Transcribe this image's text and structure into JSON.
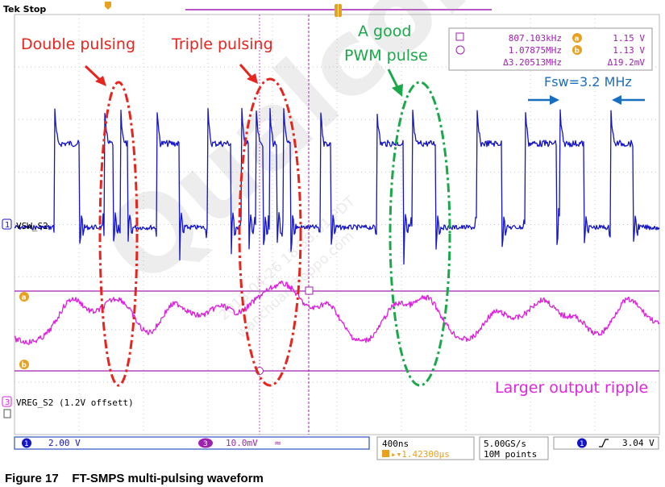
{
  "status": "Tek Stop",
  "colors": {
    "ch1": "#1414c8",
    "ch3": "#e01ee0",
    "cursor": "#a020b0",
    "annot_red": "#e8241e",
    "annot_green": "#1aa84a",
    "annot_blue": "#1a6ec0",
    "annot_magenta": "#e026e0",
    "trigger": "#e8a020"
  },
  "annotations": {
    "double": "Double pulsing",
    "triple": "Triple pulsing",
    "good_line1": "A good",
    "good_line2": "PWM pulse",
    "fsw": "Fsw=3.2 MHz",
    "ripple": "Larger output ripple"
  },
  "cursor_readout": {
    "f1": "807.103kHz",
    "f2": "1.07875MHz",
    "df": "Δ3.20513MHz",
    "a_val": "1.15 V",
    "b_val": "1.13 V",
    "dv": "Δ19.2mV",
    "a_marker": "a",
    "b_marker": "b"
  },
  "traces": {
    "ch1_num": "1",
    "ch1_label": "VSW_S2",
    "ch3_num": "3",
    "ch3_label": "VREG_S2 (1.2V offsett)"
  },
  "bottom_bar": {
    "ch1_icon": "1",
    "ch1_scale": "2.00 V",
    "ch3_icon": "3",
    "ch3_scale": "10.0mV",
    "bw_icon": "≈",
    "timebase": "400ns",
    "trig_pos": "▸▾1.42300µs",
    "sample_rate": "5.00GS/s",
    "record": "10M points",
    "trig_ch": "1",
    "trig_level": "3.04 V"
  },
  "watermark": {
    "big": "Qualcomm",
    "line1": "2018-04-26 18:38:01 PDT",
    "line2": "wanchuan@oppo.com"
  },
  "caption": "Figure 17    FT-SMPS multi-pulsing waveform"
}
